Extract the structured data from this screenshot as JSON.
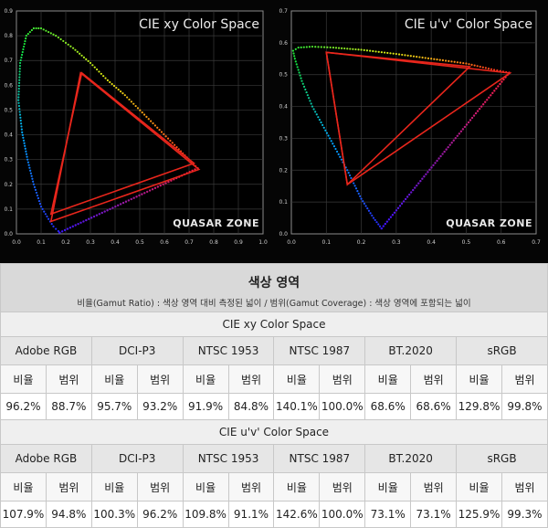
{
  "chart_data": [
    {
      "type": "scatter",
      "title": "CIE xy Color Space",
      "watermark": "QUASAR ZONE",
      "xlim": [
        0,
        1.0
      ],
      "ylim": [
        0,
        0.9
      ],
      "x_ticks": [
        "0.0",
        "0.1",
        "0.2",
        "0.3",
        "0.4",
        "0.5",
        "0.6",
        "0.7",
        "0.8",
        "0.9",
        "1.0"
      ],
      "y_ticks": [
        "0.0",
        "0.1",
        "0.2",
        "0.3",
        "0.4",
        "0.5",
        "0.6",
        "0.7",
        "0.8",
        "0.9"
      ],
      "grid": true,
      "spectral_locus": [
        [
          0.175,
          0.005
        ],
        [
          0.17,
          0.011
        ],
        [
          0.16,
          0.02
        ],
        [
          0.15,
          0.03
        ],
        [
          0.13,
          0.06
        ],
        [
          0.1,
          0.11
        ],
        [
          0.07,
          0.2
        ],
        [
          0.045,
          0.3
        ],
        [
          0.023,
          0.41
        ],
        [
          0.008,
          0.54
        ],
        [
          0.015,
          0.69
        ],
        [
          0.04,
          0.8
        ],
        [
          0.07,
          0.83
        ],
        [
          0.1,
          0.83
        ],
        [
          0.16,
          0.8
        ],
        [
          0.23,
          0.75
        ],
        [
          0.3,
          0.69
        ],
        [
          0.37,
          0.62
        ],
        [
          0.44,
          0.56
        ],
        [
          0.51,
          0.49
        ],
        [
          0.58,
          0.42
        ],
        [
          0.65,
          0.35
        ],
        [
          0.7,
          0.3
        ],
        [
          0.735,
          0.265
        ]
      ],
      "purple_line": [
        [
          0.735,
          0.265
        ],
        [
          0.175,
          0.005
        ]
      ],
      "gamut_triangles": [
        {
          "points": [
            [
              0.265,
              0.65
            ],
            [
              0.72,
              0.285
            ],
            [
              0.14,
              0.08
            ]
          ],
          "color": "#e8261c"
        },
        {
          "points": [
            [
              0.26,
              0.65
            ],
            [
              0.74,
              0.26
            ],
            [
              0.14,
              0.05
            ]
          ],
          "color": "#e8261c"
        }
      ]
    },
    {
      "type": "scatter",
      "title": "CIE u'v' Color Space",
      "watermark": "QUASAR ZONE",
      "xlim": [
        0,
        0.7
      ],
      "ylim": [
        0,
        0.7
      ],
      "x_ticks": [
        "0.0",
        "0.1",
        "0.2",
        "0.3",
        "0.4",
        "0.5",
        "0.6",
        "0.7"
      ],
      "y_ticks": [
        "0.0",
        "0.1",
        "0.2",
        "0.3",
        "0.4",
        "0.5",
        "0.6",
        "0.7"
      ],
      "grid": true,
      "spectral_locus": [
        [
          0.258,
          0.017
        ],
        [
          0.235,
          0.05
        ],
        [
          0.2,
          0.11
        ],
        [
          0.16,
          0.2
        ],
        [
          0.11,
          0.3
        ],
        [
          0.06,
          0.4
        ],
        [
          0.03,
          0.48
        ],
        [
          0.01,
          0.55
        ],
        [
          0.005,
          0.575
        ],
        [
          0.02,
          0.585
        ],
        [
          0.06,
          0.588
        ],
        [
          0.12,
          0.585
        ],
        [
          0.2,
          0.578
        ],
        [
          0.3,
          0.565
        ],
        [
          0.4,
          0.55
        ],
        [
          0.5,
          0.535
        ],
        [
          0.58,
          0.515
        ],
        [
          0.623,
          0.506
        ]
      ],
      "purple_line": [
        [
          0.623,
          0.506
        ],
        [
          0.258,
          0.017
        ]
      ],
      "gamut_triangles": [
        {
          "points": [
            [
              0.1,
              0.57
            ],
            [
              0.51,
              0.525
            ],
            [
              0.16,
              0.155
            ]
          ],
          "color": "#e8261c"
        },
        {
          "points": [
            [
              0.1,
              0.57
            ],
            [
              0.625,
              0.505
            ],
            [
              0.16,
              0.155
            ]
          ],
          "color": "#e8261c"
        }
      ]
    }
  ],
  "table": {
    "title": "색상 영역",
    "subtitle": "비율(Gamut Ratio) : 색상 영역 대비 측정된 넓이 / 범위(Gamut Coverage) : 색상 영역에 포함되는 넓이",
    "sections": [
      {
        "space": "CIE xy Color Space",
        "standards": [
          "Adobe RGB",
          "DCI-P3",
          "NTSC 1953",
          "NTSC 1987",
          "BT.2020",
          "sRGB"
        ],
        "labels": [
          "비율",
          "범위",
          "비율",
          "범위",
          "비율",
          "범위",
          "비율",
          "범위",
          "비율",
          "범위",
          "비율",
          "범위"
        ],
        "values": [
          "96.2%",
          "88.7%",
          "95.7%",
          "93.2%",
          "91.9%",
          "84.8%",
          "140.1%",
          "100.0%",
          "68.6%",
          "68.6%",
          "129.8%",
          "99.8%"
        ]
      },
      {
        "space": "CIE u'v' Color Space",
        "standards": [
          "Adobe RGB",
          "DCI-P3",
          "NTSC 1953",
          "NTSC 1987",
          "BT.2020",
          "sRGB"
        ],
        "labels": [
          "비율",
          "범위",
          "비율",
          "범위",
          "비율",
          "범위",
          "비율",
          "범위",
          "비율",
          "범위",
          "비율",
          "범위"
        ],
        "values": [
          "107.9%",
          "94.8%",
          "100.3%",
          "96.2%",
          "109.8%",
          "91.1%",
          "142.6%",
          "100.0%",
          "73.1%",
          "73.1%",
          "125.9%",
          "99.3%"
        ]
      }
    ]
  }
}
